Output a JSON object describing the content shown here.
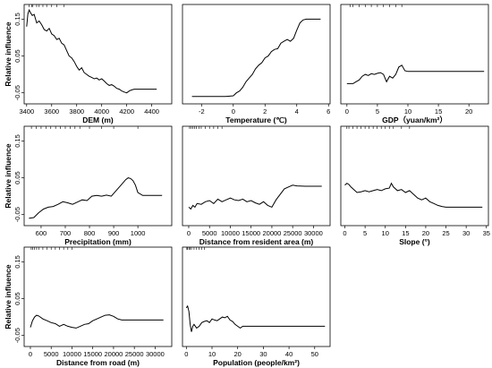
{
  "figure": {
    "ylabel": "Relative influence",
    "yticks": [
      "0.15",
      "0.05",
      "-0.05"
    ]
  },
  "chart_data": [
    {
      "type": "line",
      "xlabel": "DEM (m)",
      "ylabel": "Relative influence",
      "xlim": [
        3380,
        4560
      ],
      "ylim": [
        -0.08,
        0.19
      ],
      "xticks": [
        3400,
        3600,
        3800,
        4000,
        4200,
        4400
      ],
      "yticks": [
        0.15,
        0.05,
        -0.05
      ],
      "x": [
        3400,
        3410,
        3420,
        3430,
        3445,
        3460,
        3480,
        3500,
        3520,
        3540,
        3560,
        3580,
        3600,
        3620,
        3640,
        3660,
        3680,
        3700,
        3720,
        3740,
        3760,
        3780,
        3800,
        3820,
        3840,
        3860,
        3880,
        3900,
        3920,
        3940,
        3960,
        3980,
        4000,
        4020,
        4040,
        4060,
        4080,
        4100,
        4120,
        4140,
        4160,
        4180,
        4200,
        4220,
        4240,
        4260,
        4300,
        4350,
        4400,
        4440
      ],
      "y": [
        0.13,
        0.165,
        0.175,
        0.168,
        0.16,
        0.163,
        0.14,
        0.145,
        0.135,
        0.122,
        0.118,
        0.125,
        0.11,
        0.105,
        0.095,
        0.098,
        0.085,
        0.08,
        0.065,
        0.05,
        0.045,
        0.035,
        0.022,
        0.012,
        0.018,
        0.005,
        0.0,
        -0.005,
        -0.008,
        -0.012,
        -0.01,
        -0.015,
        -0.012,
        -0.018,
        -0.025,
        -0.03,
        -0.028,
        -0.032,
        -0.038,
        -0.04,
        -0.045,
        -0.048,
        -0.05,
        -0.045,
        -0.042,
        -0.04,
        -0.04,
        -0.04,
        -0.04,
        -0.04
      ],
      "rug": [
        3420,
        3440,
        3450,
        3480,
        3500,
        3530,
        3560,
        3600,
        3640,
        3700
      ]
    },
    {
      "type": "line",
      "xlabel": "Temperature (℃)",
      "ylabel": "",
      "xlim": [
        -3.2,
        6.1
      ],
      "ylim": [
        -0.08,
        0.19
      ],
      "xticks": [
        -2,
        0,
        2,
        4,
        6
      ],
      "yticks": [],
      "x": [
        -2.6,
        -2,
        -1.5,
        -1,
        -0.5,
        0,
        0.2,
        0.4,
        0.6,
        0.8,
        1,
        1.2,
        1.4,
        1.6,
        1.8,
        2,
        2.2,
        2.4,
        2.6,
        2.8,
        3,
        3.2,
        3.4,
        3.6,
        3.8,
        4,
        4.2,
        4.4,
        4.6,
        4.8,
        5.5
      ],
      "y": [
        -0.06,
        -0.06,
        -0.06,
        -0.06,
        -0.06,
        -0.058,
        -0.05,
        -0.045,
        -0.035,
        -0.02,
        -0.01,
        0.0,
        0.015,
        0.025,
        0.032,
        0.045,
        0.05,
        0.062,
        0.068,
        0.07,
        0.085,
        0.09,
        0.095,
        0.09,
        0.098,
        0.12,
        0.14,
        0.148,
        0.15,
        0.15,
        0.15
      ],
      "rug": []
    },
    {
      "type": "line",
      "xlabel": "GDP（yuan/km²）",
      "ylabel": "",
      "xlim": [
        -1,
        23.2
      ],
      "ylim": [
        -0.08,
        0.19
      ],
      "xticks": [
        0,
        5,
        10,
        15,
        20
      ],
      "yticks": [],
      "x": [
        0,
        1,
        1.5,
        2,
        2.5,
        3,
        3.5,
        4,
        4.5,
        5,
        5.5,
        6,
        6.5,
        7,
        7.5,
        8,
        8.5,
        9,
        9.5,
        10,
        11,
        15,
        20,
        22.5
      ],
      "y": [
        -0.025,
        -0.025,
        -0.02,
        -0.015,
        -0.005,
        0.0,
        -0.003,
        0.002,
        0.0,
        0.003,
        0.005,
        0.0,
        -0.02,
        -0.005,
        -0.01,
        0.0,
        0.02,
        0.025,
        0.01,
        0.008,
        0.008,
        0.008,
        0.008,
        0.008
      ],
      "rug": [
        0.5,
        1,
        2,
        3,
        4,
        5,
        6,
        7,
        8,
        9
      ]
    },
    {
      "type": "line",
      "xlabel": "Precipitation (mm)",
      "ylabel": "Relative influence",
      "xlim": [
        530,
        1140
      ],
      "ylim": [
        -0.08,
        0.19
      ],
      "xticks": [
        600,
        700,
        800,
        900,
        1000
      ],
      "yticks": [
        0.15,
        0.05,
        -0.05
      ],
      "x": [
        550,
        570,
        590,
        610,
        630,
        650,
        670,
        690,
        710,
        730,
        750,
        770,
        790,
        810,
        830,
        850,
        870,
        890,
        910,
        930,
        950,
        960,
        970,
        980,
        990,
        1000,
        1020,
        1050,
        1080,
        1100
      ],
      "y": [
        -0.06,
        -0.058,
        -0.045,
        -0.035,
        -0.03,
        -0.028,
        -0.022,
        -0.015,
        -0.018,
        -0.022,
        -0.016,
        -0.01,
        -0.012,
        0.0,
        0.002,
        0.0,
        0.003,
        0.0,
        0.015,
        0.03,
        0.045,
        0.05,
        0.048,
        0.042,
        0.03,
        0.01,
        0.002,
        0.002,
        0.002,
        0.002
      ],
      "rug": [
        560,
        580,
        600,
        620,
        640,
        660,
        680,
        700,
        720,
        740,
        760,
        800,
        850,
        900,
        1000
      ]
    },
    {
      "type": "line",
      "xlabel": "Distance from resident area (m)",
      "ylabel": "",
      "xlim": [
        -1500,
        34000
      ],
      "ylim": [
        -0.08,
        0.19
      ],
      "xticks": [
        0,
        5000,
        10000,
        15000,
        20000,
        25000,
        30000
      ],
      "yticks": [],
      "x": [
        0,
        500,
        1000,
        1500,
        2000,
        3000,
        4000,
        5000,
        6000,
        7000,
        8000,
        9000,
        10000,
        11000,
        12000,
        13000,
        14000,
        15000,
        16000,
        17000,
        18000,
        19000,
        20000,
        21000,
        22000,
        23000,
        24000,
        25000,
        26000,
        28000,
        30000,
        32000
      ],
      "y": [
        -0.03,
        -0.035,
        -0.025,
        -0.03,
        -0.02,
        -0.022,
        -0.015,
        -0.012,
        -0.02,
        -0.008,
        -0.015,
        -0.01,
        -0.005,
        -0.01,
        -0.012,
        -0.008,
        -0.015,
        -0.012,
        -0.018,
        -0.022,
        -0.015,
        -0.025,
        -0.03,
        -0.01,
        0.005,
        0.02,
        0.025,
        0.03,
        0.028,
        0.027,
        0.027,
        0.027
      ],
      "rug": [
        200,
        600,
        1000,
        1400,
        1800,
        2500,
        3000,
        4000,
        5000,
        6000,
        7000,
        8000
      ]
    },
    {
      "type": "line",
      "xlabel": "Slope (°)",
      "ylabel": "",
      "xlim": [
        -1,
        35.5
      ],
      "ylim": [
        -0.08,
        0.19
      ],
      "xticks": [
        0,
        5,
        10,
        15,
        20,
        25,
        30,
        35
      ],
      "yticks": [],
      "x": [
        0,
        0.5,
        1,
        1.5,
        2,
        2.5,
        3,
        4,
        5,
        6,
        7,
        8,
        9,
        10,
        11,
        11.5,
        12,
        13,
        14,
        15,
        16,
        17,
        18,
        19,
        20,
        21,
        22,
        23,
        24,
        25,
        27,
        30,
        34
      ],
      "y": [
        0.03,
        0.035,
        0.032,
        0.025,
        0.02,
        0.015,
        0.01,
        0.012,
        0.015,
        0.012,
        0.015,
        0.018,
        0.015,
        0.02,
        0.022,
        0.035,
        0.025,
        0.015,
        0.018,
        0.01,
        0.015,
        0.005,
        -0.005,
        -0.01,
        -0.005,
        -0.015,
        -0.02,
        -0.025,
        -0.028,
        -0.03,
        -0.03,
        -0.03,
        -0.03
      ],
      "rug": [
        0.5,
        1,
        2,
        3,
        4,
        5,
        6,
        7,
        8,
        9,
        10,
        11,
        12,
        14,
        16
      ]
    },
    {
      "type": "line",
      "xlabel": "Distance from road (m)",
      "ylabel": "Relative influence",
      "xlim": [
        -1500,
        34000
      ],
      "ylim": [
        -0.08,
        0.19
      ],
      "xticks": [
        0,
        5000,
        10000,
        15000,
        20000,
        25000,
        30000
      ],
      "yticks": [
        0.15,
        0.05,
        -0.05
      ],
      "x": [
        0,
        500,
        1000,
        1500,
        2000,
        3000,
        4000,
        5000,
        6000,
        7000,
        8000,
        9000,
        10000,
        11000,
        12000,
        13000,
        14000,
        15000,
        16000,
        17000,
        18000,
        19000,
        20000,
        21000,
        22000,
        25000,
        30000,
        32000
      ],
      "y": [
        -0.028,
        -0.01,
        0.0,
        0.005,
        0.003,
        -0.005,
        -0.01,
        -0.015,
        -0.018,
        -0.025,
        -0.02,
        -0.025,
        -0.028,
        -0.03,
        -0.025,
        -0.02,
        -0.018,
        -0.01,
        -0.005,
        0.0,
        0.005,
        0.006,
        0.002,
        -0.005,
        -0.008,
        -0.008,
        -0.008,
        -0.008
      ],
      "rug": [
        200,
        500,
        1000,
        1500,
        2000,
        3000,
        4000,
        5000,
        6000,
        7000,
        8000,
        9000,
        10000
      ]
    },
    {
      "type": "line",
      "xlabel": "Population (people/km²)",
      "ylabel": "",
      "xlim": [
        -1.5,
        56
      ],
      "ylim": [
        -0.08,
        0.19
      ],
      "xticks": [
        0,
        10,
        20,
        30,
        40,
        50
      ],
      "yticks": [],
      "x": [
        0,
        0.5,
        1,
        1.5,
        2,
        2.5,
        3,
        4,
        5,
        6,
        7,
        8,
        9,
        10,
        11,
        12,
        13,
        14,
        15,
        16,
        17,
        18,
        19,
        20,
        21,
        22,
        25,
        30,
        40,
        50,
        54
      ],
      "y": [
        0.025,
        0.03,
        0.015,
        -0.02,
        -0.04,
        -0.025,
        -0.02,
        -0.03,
        -0.025,
        -0.015,
        -0.012,
        -0.01,
        -0.015,
        -0.005,
        -0.008,
        -0.01,
        -0.005,
        0.0,
        -0.002,
        0.002,
        -0.008,
        -0.012,
        -0.02,
        -0.025,
        -0.03,
        -0.025,
        -0.025,
        -0.025,
        -0.025,
        -0.025,
        -0.025
      ],
      "rug": [
        0.2,
        0.5,
        1,
        1.5,
        2,
        3,
        4,
        5,
        6,
        7
      ]
    }
  ]
}
